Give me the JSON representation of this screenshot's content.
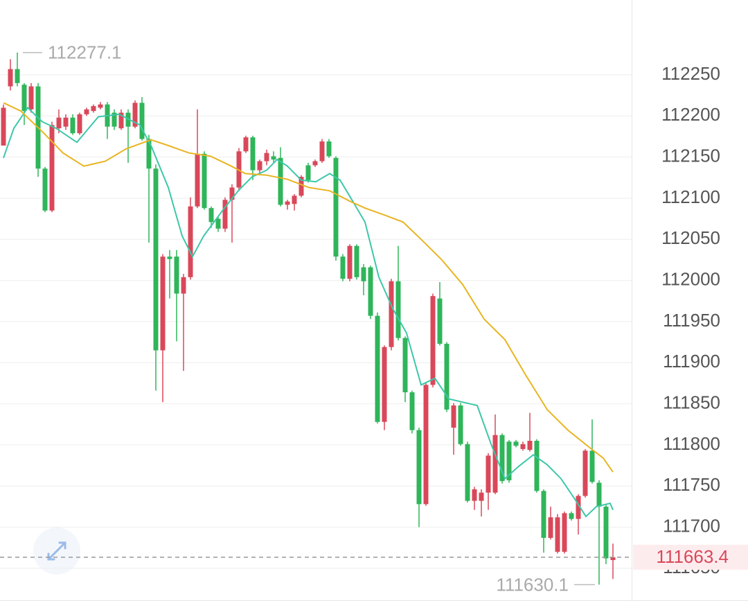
{
  "chart_data": {
    "type": "candlestick",
    "up_color": "#d9485a",
    "down_color": "#2fb55a",
    "ylim": [
      111612,
      112341
    ],
    "yticks": [
      111650,
      111700,
      111750,
      111800,
      111850,
      111900,
      111950,
      112000,
      112050,
      112100,
      112150,
      112200,
      112250
    ],
    "grid": true,
    "open": [
      112164,
      112236,
      112257,
      112238,
      112208,
      112236,
      112136,
      112085,
      112185,
      112187,
      112198,
      112179,
      112202,
      112206,
      112210,
      112214,
      112204,
      112185,
      112204,
      112187,
      112216,
      112172,
      112136,
      111915,
      112029,
      112029,
      111984,
      112004,
      112090,
      112154,
      112088,
      112075,
      112063,
      112098,
      112113,
      112157,
      112174,
      112134,
      112145,
      112151,
      112149,
      112092,
      112093,
      112103,
      112140,
      112140,
      112145,
      112169,
      112149,
      112029,
      112002,
      112042,
      112016,
      112016,
      111957,
      111828,
      111919,
      111999,
      111930,
      111864,
      111818,
      111728,
      111873,
      111978,
      111923,
      111821,
      111848,
      111801,
      111732,
      111732,
      111742,
      111742,
      111812,
      111804,
      111804,
      111795,
      111794,
      111805,
      111744,
      111687,
      111670,
      111670,
      111717,
      111710,
      111738,
      111793,
      111754,
      111725,
      111660
    ],
    "high": [
      112214,
      112269,
      112277.1,
      112240,
      112240,
      112240,
      112138,
      112193,
      112208,
      112202,
      112202,
      112204,
      112210,
      112214,
      112217,
      112217,
      112208,
      112208,
      112208,
      112219,
      112223,
      112177,
      112141,
      112032,
      112037,
      112037,
      112008,
      112101,
      112208,
      112157,
      112090,
      112078,
      112101,
      112117,
      112161,
      112176,
      112176,
      112147,
      112159,
      112157,
      112162,
      112098,
      112105,
      112128,
      112143,
      112147,
      112172,
      112172,
      112151,
      112032,
      112044,
      112044,
      112020,
      112018,
      111961,
      111921,
      112002,
      112042,
      111932,
      111866,
      111821,
      111875,
      111984,
      111998,
      111925,
      111851,
      111851,
      111804,
      111749,
      111746,
      111790,
      111837,
      111814,
      111806,
      111806,
      111804,
      111839,
      111807,
      111746,
      111725,
      111716,
      111719,
      111719,
      111740,
      111795,
      111831,
      111757,
      111727,
      111680
    ],
    "low": [
      112164,
      112231,
      112236,
      112189,
      112204,
      112126,
      112083,
      112083,
      112179,
      112183,
      112177,
      112177,
      112200,
      112204,
      112208,
      112172,
      112183,
      112183,
      112143,
      112185,
      112170,
      112046,
      111866,
      111852,
      111978,
      111926,
      111890,
      112001,
      112088,
      112086,
      112064,
      112059,
      112059,
      112046,
      112109,
      112155,
      112122,
      112130,
      112140,
      112143,
      112090,
      112086,
      112085,
      112101,
      112119,
      112138,
      112143,
      112149,
      112024,
      111999,
      111999,
      112001,
      111982,
      111953,
      111826,
      111818,
      111915,
      111927,
      111852,
      111814,
      111700,
      111726,
      111870,
      111921,
      111840,
      111788,
      111799,
      111730,
      111721,
      111713,
      111721,
      111740,
      111753,
      111754,
      111797,
      111793,
      111792,
      111742,
      111669,
      111685,
      111668,
      111668,
      111708,
      111691,
      111736,
      111753,
      111630.1,
      111655,
      111637
    ],
    "close": [
      112210,
      112257,
      112240,
      112206,
      112236,
      112136,
      112085,
      112189,
      112198,
      112198,
      112179,
      112202,
      112208,
      112212,
      112214,
      112187,
      112187,
      112204,
      112187,
      112216,
      112172,
      112136,
      111915,
      112029,
      112026,
      111984,
      112004,
      112090,
      112154,
      112088,
      112071,
      112063,
      112098,
      112113,
      112157,
      112174,
      112134,
      112145,
      112155,
      112147,
      112092,
      112096,
      112103,
      112126,
      112122,
      112145,
      112169,
      112151,
      112029,
      112002,
      112042,
      112004,
      111999,
      111957,
      111828,
      111919,
      111999,
      111930,
      111864,
      111818,
      111728,
      111873,
      111981,
      111923,
      111843,
      111848,
      111801,
      111732,
      111746,
      111742,
      111787,
      111812,
      111756,
      111757,
      111799,
      111801,
      111805,
      111744,
      111687,
      111712,
      111712,
      111717,
      111710,
      111738,
      111793,
      111755,
      111725,
      111662,
      111663.4
    ],
    "series": [
      {
        "color": "#3cc7a8",
        "x": [
          0,
          1.5,
          3.5,
          5.6,
          7.6,
          10.6,
          13.7,
          16.7,
          19.7,
          21.3,
          23.8,
          25.8,
          27.3,
          28.9,
          30.4,
          31.9,
          33.9,
          35.9,
          38,
          39.5,
          41,
          43,
          45.1,
          47.1,
          48.6,
          50.1,
          52.2,
          54.2,
          56.2,
          58.2,
          60.3,
          62.3,
          64.3,
          66.3,
          68.4,
          70.4,
          72.4,
          74.4,
          76.5,
          78.5,
          80.5,
          82.5,
          84.1,
          85.6,
          87.6,
          88
        ],
        "values": [
          112149,
          112185,
          112210,
          112193,
          112185,
          112168,
          112199,
          112202,
          112189,
          112164,
          112113,
          112054,
          112029,
          112054,
          112071,
          112088,
          112109,
          112126,
          112134,
          112147,
          112139,
          112122,
          112120,
          112130,
          112122,
          112101,
          112071,
          112004,
          111966,
          111936,
          111873,
          111881,
          111856,
          111852,
          111848,
          111801,
          111759,
          111774,
          111788,
          111776,
          111759,
          111734,
          111713,
          111725,
          111729,
          111721
        ]
      },
      {
        "color": "#e8b420",
        "x": [
          0,
          2.5,
          5.6,
          8.6,
          11.6,
          14.7,
          17.7,
          21.3,
          23.8,
          26.8,
          29.9,
          32.9,
          34.9,
          38,
          41,
          44.1,
          47.1,
          50.1,
          52.2,
          55.2,
          57.7,
          60.3,
          63.3,
          66.3,
          69.4,
          72.4,
          75.4,
          78.5,
          81.5,
          84.6,
          86.6,
          88
        ],
        "values": [
          112216,
          112206,
          112181,
          112155,
          112139,
          112145,
          112160,
          112171,
          112164,
          112155,
          112151,
          112139,
          112130,
          112128,
          112123,
          112113,
          112109,
          112096,
          112088,
          112079,
          112071,
          112050,
          112025,
          111995,
          111953,
          111928,
          111885,
          111843,
          111818,
          111797,
          111784,
          111767
        ]
      }
    ],
    "max_label": 112277.1,
    "min_label": 111630.1,
    "last_price": 111663.4
  }
}
